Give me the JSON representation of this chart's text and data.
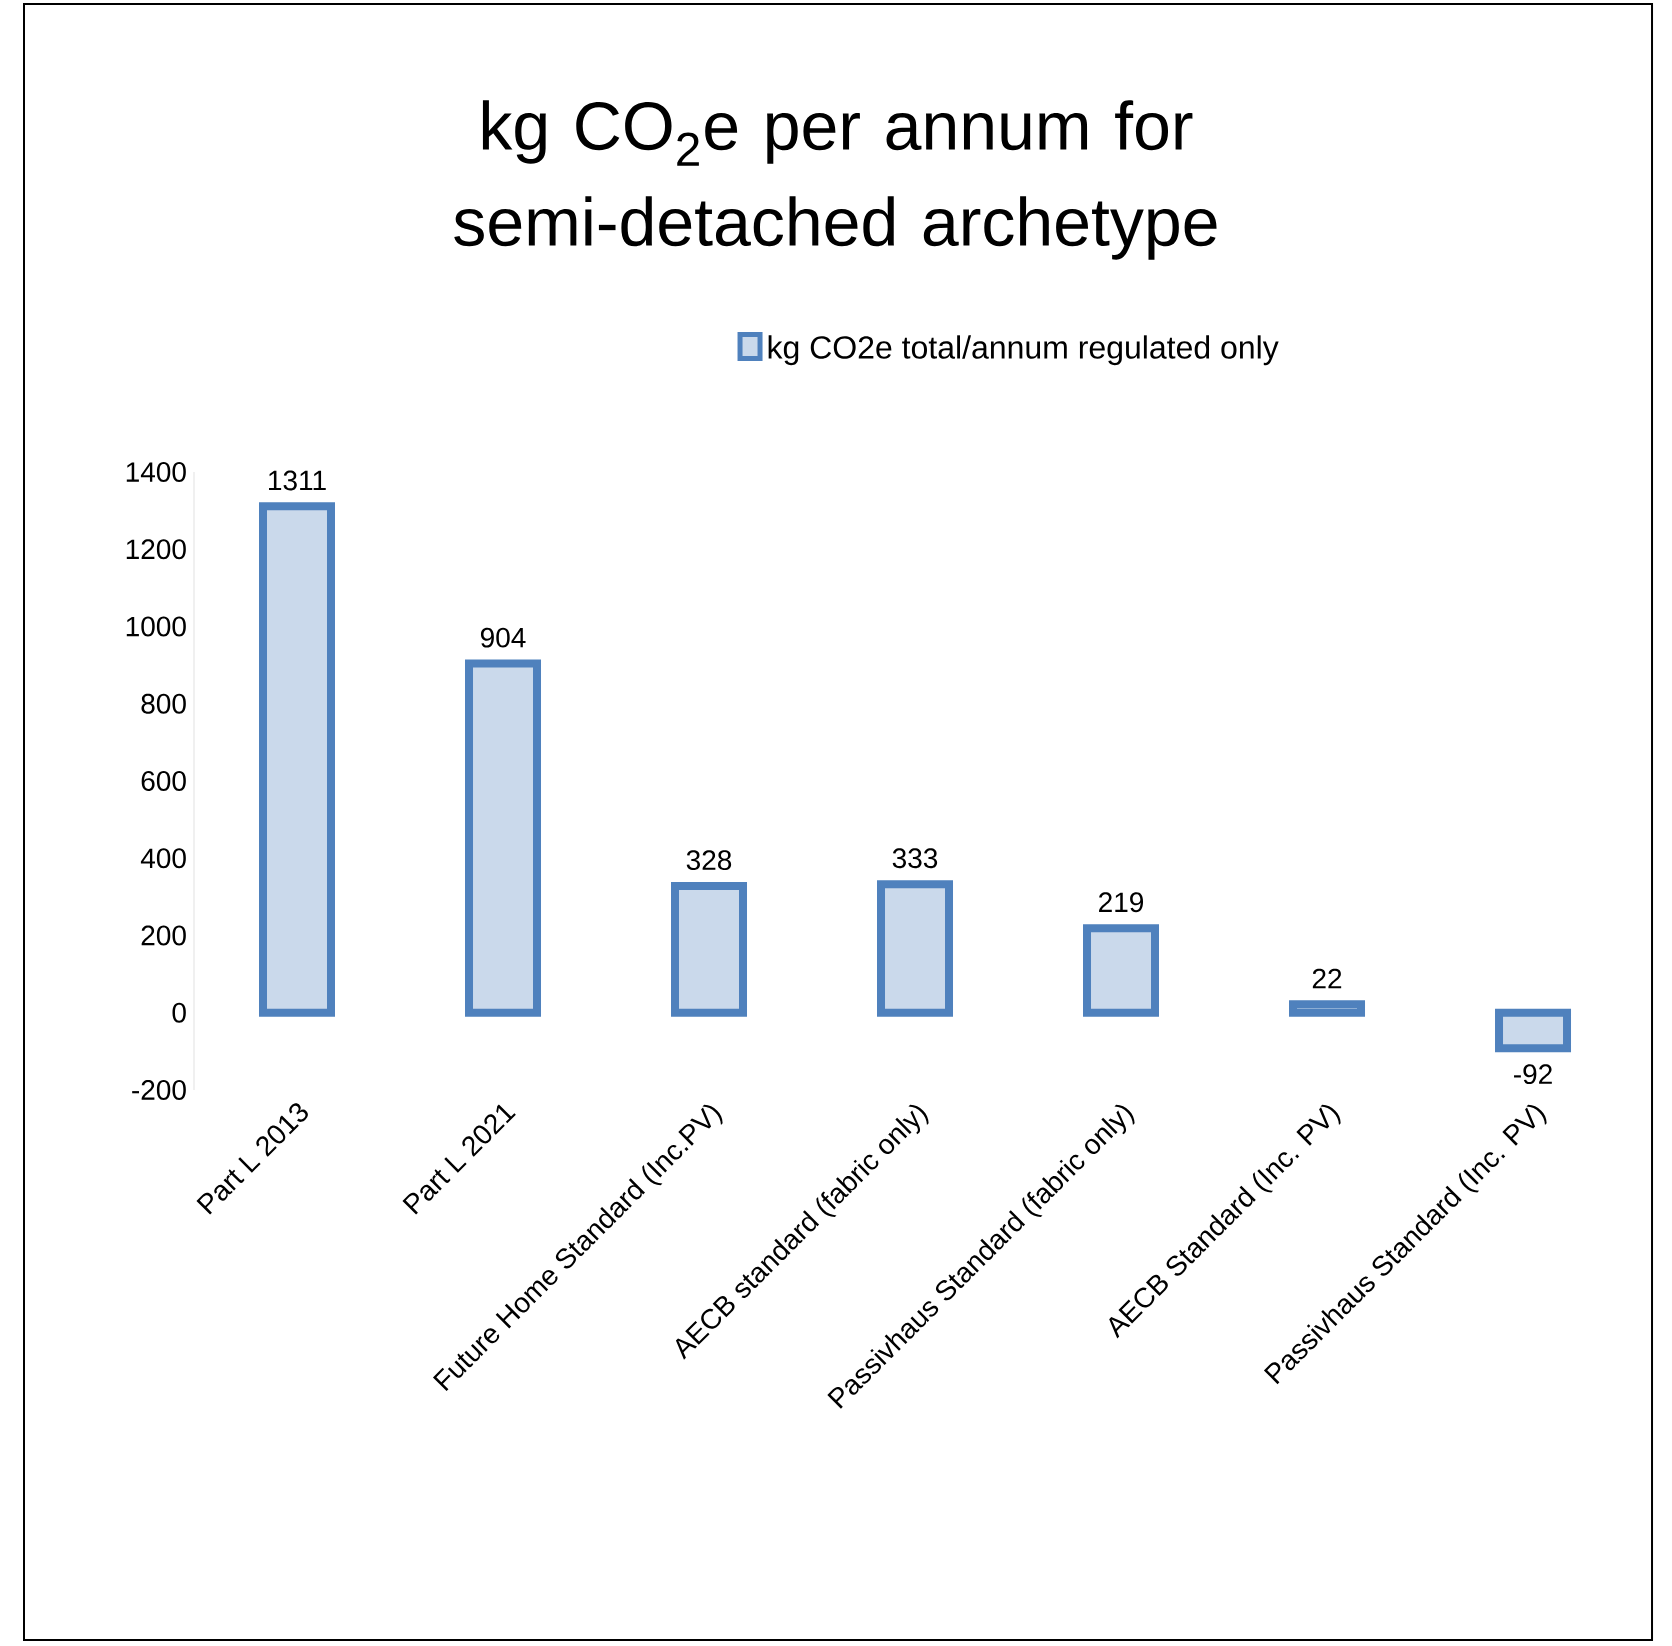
{
  "chart_data": {
    "type": "bar",
    "title": "kg CO$_{2}$e per annum for semi-detached archetype",
    "categories": [
      "Part L 2013",
      "Part L 2021",
      "Future Home Standard (Inc.PV)",
      "AECB standard (fabric only)",
      "Passivhaus Standard (fabric only)",
      "AECB Standard (Inc. PV)",
      "Passivhaus Standard (Inc. PV)"
    ],
    "series": [
      {
        "name": "kg CO2e total/annum regulated only",
        "color": "#4f81bd",
        "values": [
          1311,
          904,
          328,
          333,
          219,
          22,
          -92
        ]
      }
    ],
    "ylim": [
      -200,
      1400
    ],
    "yticks": [
      -200,
      0,
      200,
      400,
      600,
      800,
      1000,
      1200,
      1400
    ],
    "data_labels": true,
    "legend": "top"
  }
}
